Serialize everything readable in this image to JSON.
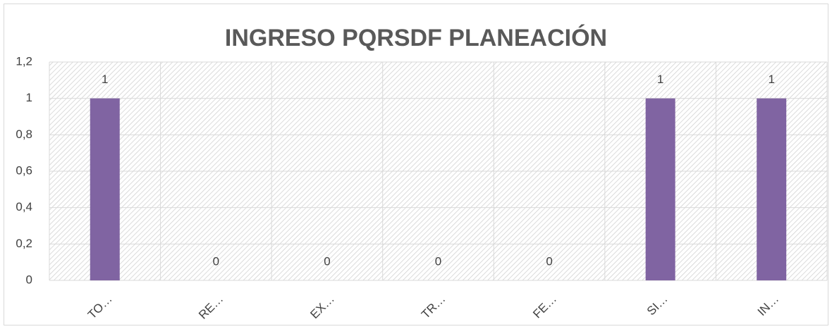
{
  "chart_data": {
    "type": "bar",
    "title": "INGRESO  PQRSDF PLANEACIÓN",
    "categories": [
      "TO…",
      "RE…",
      "EX…",
      "TR…",
      "FE…",
      "SI…",
      "IN…"
    ],
    "values": [
      1,
      0,
      0,
      0,
      0,
      1,
      1
    ],
    "color": "#8064a2",
    "ylim": [
      0,
      1.2
    ],
    "yticks": [
      0,
      {
        "value": 0.2,
        "label": "0,2"
      },
      {
        "value": 0.4,
        "label": "0,4"
      },
      {
        "value": 0.6,
        "label": "0,6"
      },
      {
        "value": 0.8,
        "label": "0,8"
      },
      1,
      {
        "value": 1.2,
        "label": "1,2"
      }
    ],
    "grid": true
  }
}
